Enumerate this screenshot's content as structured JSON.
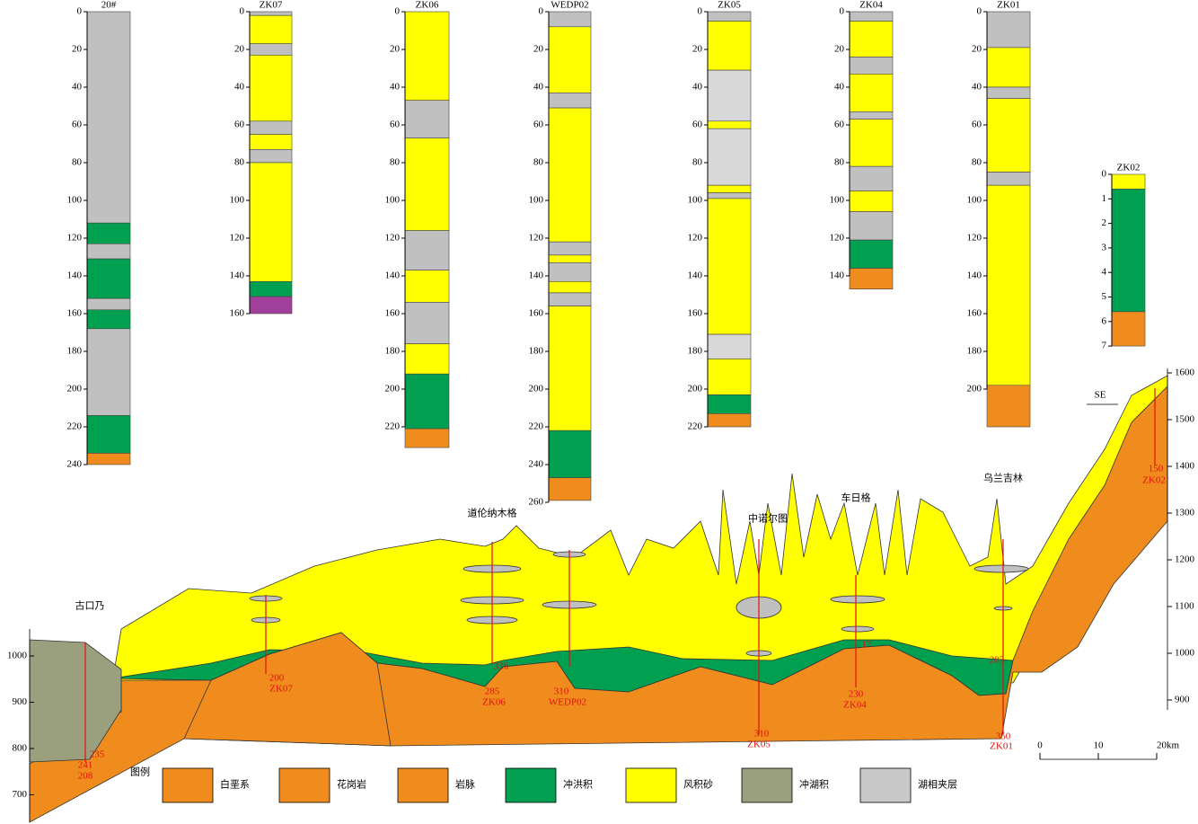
{
  "boreholes": [
    {
      "name": "20#",
      "ticks": [
        0,
        20,
        40,
        60,
        80,
        100,
        120,
        140,
        160,
        180,
        200,
        220,
        240
      ],
      "layers": [
        {
          "top": 0,
          "bottom": 112,
          "color": "#c0c0c0"
        },
        {
          "top": 112,
          "bottom": 123,
          "color": "#00a050"
        },
        {
          "top": 123,
          "bottom": 131,
          "color": "#c0c0c0"
        },
        {
          "top": 131,
          "bottom": 152,
          "color": "#00a050"
        },
        {
          "top": 152,
          "bottom": 158,
          "color": "#c0c0c0"
        },
        {
          "top": 158,
          "bottom": 168,
          "color": "#00a050"
        },
        {
          "top": 168,
          "bottom": 214,
          "color": "#c0c0c0"
        },
        {
          "top": 214,
          "bottom": 234,
          "color": "#00a050"
        },
        {
          "top": 234,
          "bottom": 240,
          "color": "#f08c1e"
        }
      ]
    },
    {
      "name": "ZK07",
      "ticks": [
        0,
        20,
        40,
        60,
        80,
        100,
        120,
        140,
        160
      ],
      "layers": [
        {
          "top": 0,
          "bottom": 2,
          "color": "#c0c0c0"
        },
        {
          "top": 2,
          "bottom": 17,
          "color": "#ffff00"
        },
        {
          "top": 17,
          "bottom": 23,
          "color": "#c0c0c0"
        },
        {
          "top": 23,
          "bottom": 58,
          "color": "#ffff00"
        },
        {
          "top": 58,
          "bottom": 65,
          "color": "#c0c0c0"
        },
        {
          "top": 65,
          "bottom": 73,
          "color": "#ffff00"
        },
        {
          "top": 73,
          "bottom": 80,
          "color": "#c0c0c0"
        },
        {
          "top": 80,
          "bottom": 143,
          "color": "#ffff00"
        },
        {
          "top": 143,
          "bottom": 151,
          "color": "#00a050"
        },
        {
          "top": 151,
          "bottom": 160,
          "color": "#a0409a"
        }
      ]
    },
    {
      "name": "ZK06",
      "ticks": [
        0,
        20,
        40,
        60,
        80,
        100,
        120,
        140,
        160,
        180,
        200,
        220
      ],
      "layers": [
        {
          "top": 0,
          "bottom": 47,
          "color": "#ffff00"
        },
        {
          "top": 47,
          "bottom": 67,
          "color": "#c0c0c0"
        },
        {
          "top": 67,
          "bottom": 116,
          "color": "#ffff00"
        },
        {
          "top": 116,
          "bottom": 137,
          "color": "#c0c0c0"
        },
        {
          "top": 137,
          "bottom": 154,
          "color": "#ffff00"
        },
        {
          "top": 154,
          "bottom": 176,
          "color": "#c0c0c0"
        },
        {
          "top": 176,
          "bottom": 192,
          "color": "#ffff00"
        },
        {
          "top": 192,
          "bottom": 221,
          "color": "#00a050"
        },
        {
          "top": 221,
          "bottom": 231,
          "color": "#f08c1e"
        }
      ]
    },
    {
      "name": "WEDP02",
      "ticks": [
        0,
        20,
        40,
        60,
        80,
        100,
        120,
        140,
        160,
        180,
        200,
        220,
        240,
        260
      ],
      "layers": [
        {
          "top": 0,
          "bottom": 8,
          "color": "#c0c0c0"
        },
        {
          "top": 8,
          "bottom": 43,
          "color": "#ffff00"
        },
        {
          "top": 43,
          "bottom": 51,
          "color": "#c0c0c0"
        },
        {
          "top": 51,
          "bottom": 122,
          "color": "#ffff00"
        },
        {
          "top": 122,
          "bottom": 129,
          "color": "#c0c0c0"
        },
        {
          "top": 129,
          "bottom": 133,
          "color": "#ffff00"
        },
        {
          "top": 133,
          "bottom": 143,
          "color": "#c0c0c0"
        },
        {
          "top": 143,
          "bottom": 149,
          "color": "#ffff00"
        },
        {
          "top": 149,
          "bottom": 156,
          "color": "#c0c0c0"
        },
        {
          "top": 156,
          "bottom": 222,
          "color": "#ffff00"
        },
        {
          "top": 222,
          "bottom": 247,
          "color": "#00a050"
        },
        {
          "top": 247,
          "bottom": 259,
          "color": "#f08c1e"
        }
      ]
    },
    {
      "name": "ZK05",
      "ticks": [
        0,
        20,
        40,
        60,
        80,
        100,
        120,
        140,
        160,
        180,
        200,
        220
      ],
      "layers": [
        {
          "top": 0,
          "bottom": 5,
          "color": "#c0c0c0"
        },
        {
          "top": 5,
          "bottom": 31,
          "color": "#ffff00"
        },
        {
          "top": 31,
          "bottom": 58,
          "color": "#d8d8d8"
        },
        {
          "top": 58,
          "bottom": 62,
          "color": "#ffff00"
        },
        {
          "top": 62,
          "bottom": 92,
          "color": "#d8d8d8"
        },
        {
          "top": 92,
          "bottom": 96,
          "color": "#ffff00"
        },
        {
          "top": 96,
          "bottom": 99,
          "color": "#c0c0c0"
        },
        {
          "top": 99,
          "bottom": 171,
          "color": "#ffff00"
        },
        {
          "top": 171,
          "bottom": 184,
          "color": "#d8d8d8"
        },
        {
          "top": 184,
          "bottom": 203,
          "color": "#ffff00"
        },
        {
          "top": 203,
          "bottom": 213,
          "color": "#00a050"
        },
        {
          "top": 213,
          "bottom": 220,
          "color": "#f08c1e"
        }
      ]
    },
    {
      "name": "ZK04",
      "ticks": [
        0,
        20,
        40,
        60,
        80,
        100,
        120,
        140
      ],
      "layers": [
        {
          "top": 0,
          "bottom": 5,
          "color": "#c0c0c0"
        },
        {
          "top": 5,
          "bottom": 24,
          "color": "#ffff00"
        },
        {
          "top": 24,
          "bottom": 33,
          "color": "#c0c0c0"
        },
        {
          "top": 33,
          "bottom": 53,
          "color": "#ffff00"
        },
        {
          "top": 53,
          "bottom": 57,
          "color": "#c0c0c0"
        },
        {
          "top": 57,
          "bottom": 82,
          "color": "#ffff00"
        },
        {
          "top": 82,
          "bottom": 95,
          "color": "#c0c0c0"
        },
        {
          "top": 95,
          "bottom": 106,
          "color": "#ffff00"
        },
        {
          "top": 106,
          "bottom": 121,
          "color": "#c0c0c0"
        },
        {
          "top": 121,
          "bottom": 136,
          "color": "#00a050"
        },
        {
          "top": 136,
          "bottom": 147,
          "color": "#f08c1e"
        }
      ]
    },
    {
      "name": "ZK01",
      "ticks": [
        0,
        20,
        40,
        60,
        80,
        100,
        120,
        140,
        160,
        180,
        200
      ],
      "layers": [
        {
          "top": 0,
          "bottom": 19,
          "color": "#c0c0c0"
        },
        {
          "top": 19,
          "bottom": 40,
          "color": "#ffff00"
        },
        {
          "top": 40,
          "bottom": 46,
          "color": "#c0c0c0"
        },
        {
          "top": 46,
          "bottom": 85,
          "color": "#ffff00"
        },
        {
          "top": 85,
          "bottom": 92,
          "color": "#c0c0c0"
        },
        {
          "top": 92,
          "bottom": 198,
          "color": "#ffff00"
        },
        {
          "top": 198,
          "bottom": 220,
          "color": "#f08c1e"
        }
      ]
    },
    {
      "name": "ZK02",
      "ticks": [
        0,
        1,
        2,
        3,
        4,
        5,
        6,
        7
      ],
      "layers": [
        {
          "top": 0,
          "bottom": 0.6,
          "color": "#ffff00"
        },
        {
          "top": 0.6,
          "bottom": 5.6,
          "color": "#00a050"
        },
        {
          "top": 5.6,
          "bottom": 7,
          "color": "#f08c1e"
        }
      ]
    }
  ],
  "section": {
    "left_ticks": [
      700,
      800,
      900,
      1000
    ],
    "right_ticks": [
      900,
      1000,
      1100,
      1200,
      1300,
      1400,
      1500,
      1600
    ],
    "places": [
      "古口乃",
      "道伦纳木格",
      "中诺尔图",
      "车日格",
      "乌兰吉林"
    ],
    "direction": "SE",
    "well_labels": [
      "235",
      "241",
      "208",
      "200",
      "ZK07",
      "336",
      "285",
      "ZK06",
      "310",
      "WEDP02",
      "310",
      "ZK05",
      "17",
      "230",
      "ZK04",
      "203",
      "350",
      "ZK01",
      "150",
      "ZK02"
    ]
  },
  "legend": {
    "title": "图例",
    "items": [
      {
        "label": "白垩系",
        "color": "#f08c1e"
      },
      {
        "label": "花岗岩",
        "color": "#f08c1e"
      },
      {
        "label": "岩脉",
        "color": "#f08c1e"
      },
      {
        "label": "冲洪积",
        "color": "#00a050"
      },
      {
        "label": "风积砂",
        "color": "#ffff00"
      },
      {
        "label": "冲湖积",
        "color": "#9aa07e"
      },
      {
        "label": "湖相夹层",
        "color": "#c8c8c8"
      }
    ]
  },
  "scale_bar": {
    "ticks": [
      0,
      10,
      {
        "value": 20,
        "label": "20km"
      }
    ]
  }
}
